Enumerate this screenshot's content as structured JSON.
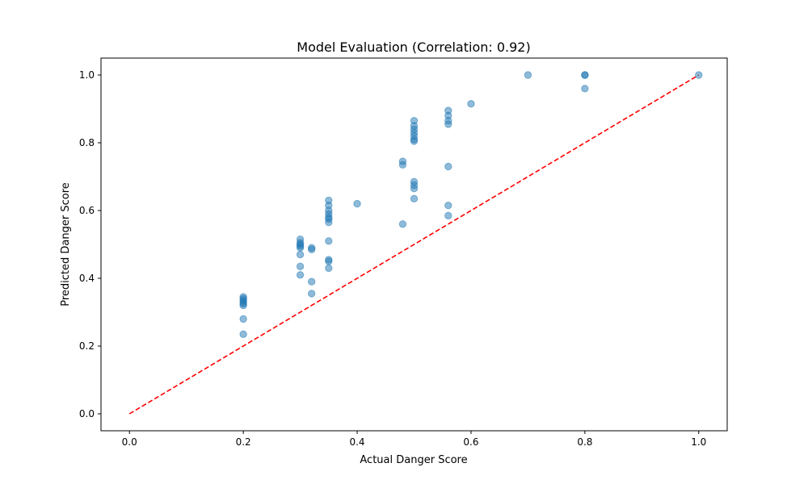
{
  "chart_data": {
    "type": "scatter",
    "title": "Model Evaluation (Correlation: 0.92)",
    "xlabel": "Actual Danger Score",
    "ylabel": "Predicted Danger Score",
    "xlim": [
      -0.05,
      1.05
    ],
    "ylim": [
      -0.05,
      1.05
    ],
    "x_ticks": [
      0.0,
      0.2,
      0.4,
      0.6,
      0.8,
      1.0
    ],
    "y_ticks": [
      0.0,
      0.2,
      0.4,
      0.6,
      0.8,
      1.0
    ],
    "x_tick_labels": [
      "0.0",
      "0.2",
      "0.4",
      "0.6",
      "0.8",
      "1.0"
    ],
    "y_tick_labels": [
      "0.0",
      "0.2",
      "0.4",
      "0.6",
      "0.8",
      "1.0"
    ],
    "grid": false,
    "point_color": "#1f77b4",
    "point_alpha": 0.5,
    "reference_line": {
      "x": [
        0.0,
        1.0
      ],
      "y": [
        0.0,
        1.0
      ],
      "color": "#ff0000",
      "style": "dashed"
    },
    "points": [
      {
        "x": 0.2,
        "y": 0.345
      },
      {
        "x": 0.2,
        "y": 0.34
      },
      {
        "x": 0.2,
        "y": 0.335
      },
      {
        "x": 0.2,
        "y": 0.33
      },
      {
        "x": 0.2,
        "y": 0.325
      },
      {
        "x": 0.2,
        "y": 0.32
      },
      {
        "x": 0.2,
        "y": 0.28
      },
      {
        "x": 0.2,
        "y": 0.235
      },
      {
        "x": 0.3,
        "y": 0.515
      },
      {
        "x": 0.3,
        "y": 0.505
      },
      {
        "x": 0.3,
        "y": 0.5
      },
      {
        "x": 0.3,
        "y": 0.495
      },
      {
        "x": 0.3,
        "y": 0.49
      },
      {
        "x": 0.3,
        "y": 0.47
      },
      {
        "x": 0.3,
        "y": 0.435
      },
      {
        "x": 0.3,
        "y": 0.41
      },
      {
        "x": 0.32,
        "y": 0.49
      },
      {
        "x": 0.32,
        "y": 0.485
      },
      {
        "x": 0.32,
        "y": 0.39
      },
      {
        "x": 0.32,
        "y": 0.355
      },
      {
        "x": 0.35,
        "y": 0.63
      },
      {
        "x": 0.35,
        "y": 0.615
      },
      {
        "x": 0.35,
        "y": 0.6
      },
      {
        "x": 0.35,
        "y": 0.59
      },
      {
        "x": 0.35,
        "y": 0.58
      },
      {
        "x": 0.35,
        "y": 0.575
      },
      {
        "x": 0.35,
        "y": 0.565
      },
      {
        "x": 0.35,
        "y": 0.51
      },
      {
        "x": 0.35,
        "y": 0.455
      },
      {
        "x": 0.35,
        "y": 0.45
      },
      {
        "x": 0.35,
        "y": 0.43
      },
      {
        "x": 0.4,
        "y": 0.62
      },
      {
        "x": 0.48,
        "y": 0.745
      },
      {
        "x": 0.48,
        "y": 0.735
      },
      {
        "x": 0.48,
        "y": 0.56
      },
      {
        "x": 0.5,
        "y": 0.865
      },
      {
        "x": 0.5,
        "y": 0.85
      },
      {
        "x": 0.5,
        "y": 0.84
      },
      {
        "x": 0.5,
        "y": 0.83
      },
      {
        "x": 0.5,
        "y": 0.82
      },
      {
        "x": 0.5,
        "y": 0.81
      },
      {
        "x": 0.5,
        "y": 0.805
      },
      {
        "x": 0.5,
        "y": 0.685
      },
      {
        "x": 0.5,
        "y": 0.675
      },
      {
        "x": 0.5,
        "y": 0.665
      },
      {
        "x": 0.5,
        "y": 0.635
      },
      {
        "x": 0.56,
        "y": 0.895
      },
      {
        "x": 0.56,
        "y": 0.88
      },
      {
        "x": 0.56,
        "y": 0.865
      },
      {
        "x": 0.56,
        "y": 0.855
      },
      {
        "x": 0.56,
        "y": 0.73
      },
      {
        "x": 0.56,
        "y": 0.615
      },
      {
        "x": 0.56,
        "y": 0.585
      },
      {
        "x": 0.6,
        "y": 0.915
      },
      {
        "x": 0.7,
        "y": 1.0
      },
      {
        "x": 0.8,
        "y": 1.0
      },
      {
        "x": 0.8,
        "y": 1.0
      },
      {
        "x": 0.8,
        "y": 0.96
      },
      {
        "x": 1.0,
        "y": 1.0
      }
    ]
  }
}
